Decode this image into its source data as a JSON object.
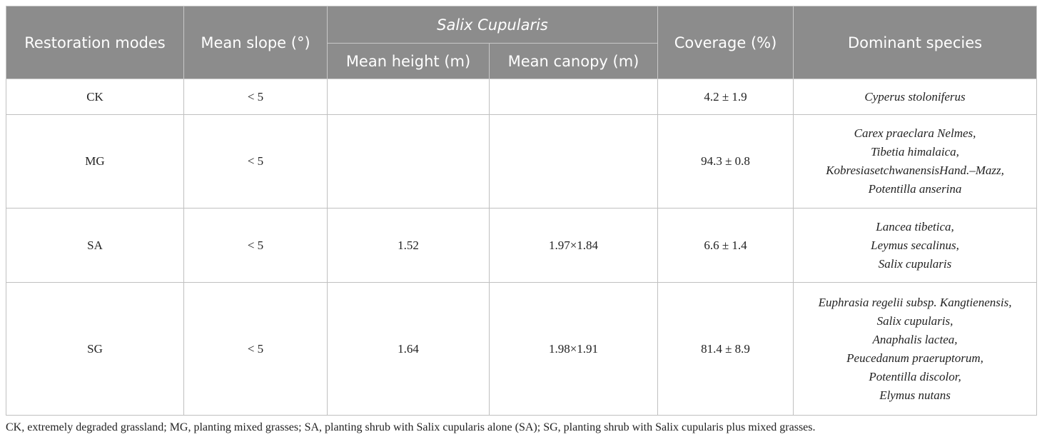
{
  "table": {
    "header": {
      "mode": "Restoration modes",
      "slope": "Mean slope (°)",
      "group": "Salix Cupularis",
      "height": "Mean height (m)",
      "canopy": "Mean canopy (m)",
      "coverage": "Coverage (%)",
      "species": "Dominant species"
    },
    "rows": [
      {
        "mode": "CK",
        "slope": "< 5",
        "coverage": "4.2 ± 1.9",
        "species": [
          "Cyperus stoloniferus"
        ]
      },
      {
        "mode": "MG",
        "slope": "< 5",
        "coverage": "94.3 ± 0.8",
        "species": [
          "Carex praeclara Nelmes,",
          "Tibetia himalaica,",
          "KobresiasetchwanensisHand.–Mazz,",
          "Potentilla anserina"
        ]
      },
      {
        "mode": "SA",
        "slope": "< 5",
        "height": "1.52",
        "canopy": "1.97×1.84",
        "coverage": "6.6 ± 1.4",
        "species": [
          "Lancea tibetica,",
          "Leymus secalinus,",
          "Salix cupularis"
        ]
      },
      {
        "mode": "SG",
        "slope": "< 5",
        "height": "1.64",
        "canopy": "1.98×1.91",
        "coverage": "81.4 ± 8.9",
        "species": [
          "Euphrasia regelii subsp. Kangtienensis,",
          "Salix cupularis,",
          "Anaphalis lactea,",
          "Peucedanum praeruptorum,",
          "Potentilla discolor,",
          "Elymus nutans"
        ]
      }
    ],
    "footnote": "CK, extremely degraded grassland; MG, planting mixed grasses; SA, planting shrub with Salix cupularis alone (SA); SG, planting shrub with Salix cupularis plus mixed grasses."
  }
}
